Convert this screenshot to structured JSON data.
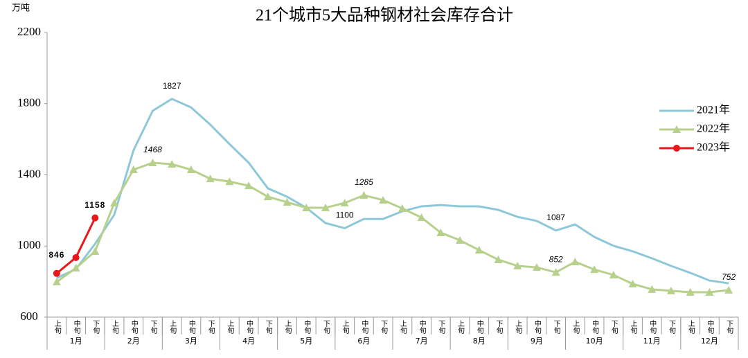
{
  "chart_data": {
    "type": "line",
    "title": "21个城市5大品种钢材社会库存合计",
    "y_axis_label": "万吨",
    "categories": [
      "上旬",
      "中旬",
      "下旬",
      "上旬",
      "中旬",
      "下旬",
      "上旬",
      "中旬",
      "下旬",
      "上旬",
      "中旬",
      "下旬",
      "上旬",
      "中旬",
      "下旬",
      "上旬",
      "中旬",
      "下旬",
      "上旬",
      "中旬",
      "下旬",
      "上旬",
      "中旬",
      "下旬",
      "上旬",
      "中旬",
      "下旬",
      "上旬",
      "中旬",
      "下旬",
      "上旬",
      "中旬",
      "下旬",
      "上旬",
      "中旬",
      "下旬"
    ],
    "months": [
      "1月",
      "2月",
      "3月",
      "4月",
      "5月",
      "6月",
      "7月",
      "8月",
      "9月",
      "10月",
      "11月",
      "12月"
    ],
    "ylim": [
      600,
      2200
    ],
    "yticks": [
      600,
      1000,
      1400,
      1800,
      2200
    ],
    "legend": "right",
    "series": [
      {
        "name": "2021年",
        "color": "#8ec8d8",
        "marker": "none",
        "values": [
          820,
          870,
          1012,
          1176,
          1538,
          1760,
          1827,
          1779,
          1682,
          1573,
          1468,
          1324,
          1277,
          1215,
          1129,
          1100,
          1152,
          1152,
          1195,
          1223,
          1230,
          1223,
          1223,
          1203,
          1164,
          1141,
          1087,
          1121,
          1051,
          1001,
          970,
          931,
          888,
          849,
          806,
          790
        ],
        "value_labels": [
          null,
          null,
          null,
          null,
          null,
          null,
          "1827",
          null,
          null,
          null,
          null,
          null,
          null,
          null,
          null,
          "1100",
          null,
          null,
          null,
          null,
          null,
          null,
          null,
          null,
          null,
          null,
          "1087",
          null,
          null,
          null,
          null,
          null,
          null,
          null,
          null,
          null
        ]
      },
      {
        "name": "2022年",
        "color": "#b7d08c",
        "marker": "triangle",
        "values": [
          798,
          876,
          970,
          1242,
          1429,
          1468,
          1460,
          1429,
          1378,
          1362,
          1339,
          1277,
          1246,
          1215,
          1215,
          1242,
          1285,
          1258,
          1211,
          1160,
          1075,
          1032,
          977,
          923,
          888,
          880,
          852,
          911,
          868,
          837,
          787,
          756,
          748,
          740,
          740,
          752
        ],
        "value_labels": [
          null,
          null,
          null,
          null,
          null,
          "1468",
          null,
          null,
          null,
          null,
          null,
          null,
          null,
          null,
          null,
          null,
          "1285",
          null,
          null,
          null,
          null,
          null,
          null,
          null,
          null,
          null,
          "852",
          null,
          null,
          null,
          null,
          null,
          null,
          null,
          null,
          "752"
        ]
      },
      {
        "name": "2023年",
        "color": "#e8171a",
        "marker": "circle",
        "values": [
          846,
          935,
          1158,
          null,
          null,
          null,
          null,
          null,
          null,
          null,
          null,
          null,
          null,
          null,
          null,
          null,
          null,
          null,
          null,
          null,
          null,
          null,
          null,
          null,
          null,
          null,
          null,
          null,
          null,
          null,
          null,
          null,
          null,
          null,
          null,
          null
        ],
        "value_labels": [
          "846",
          null,
          "1158",
          null,
          null,
          null,
          null,
          null,
          null,
          null,
          null,
          null,
          null,
          null,
          null,
          null,
          null,
          null,
          null,
          null,
          null,
          null,
          null,
          null,
          null,
          null,
          null,
          null,
          null,
          null,
          null,
          null,
          null,
          null,
          null,
          null
        ]
      }
    ]
  }
}
